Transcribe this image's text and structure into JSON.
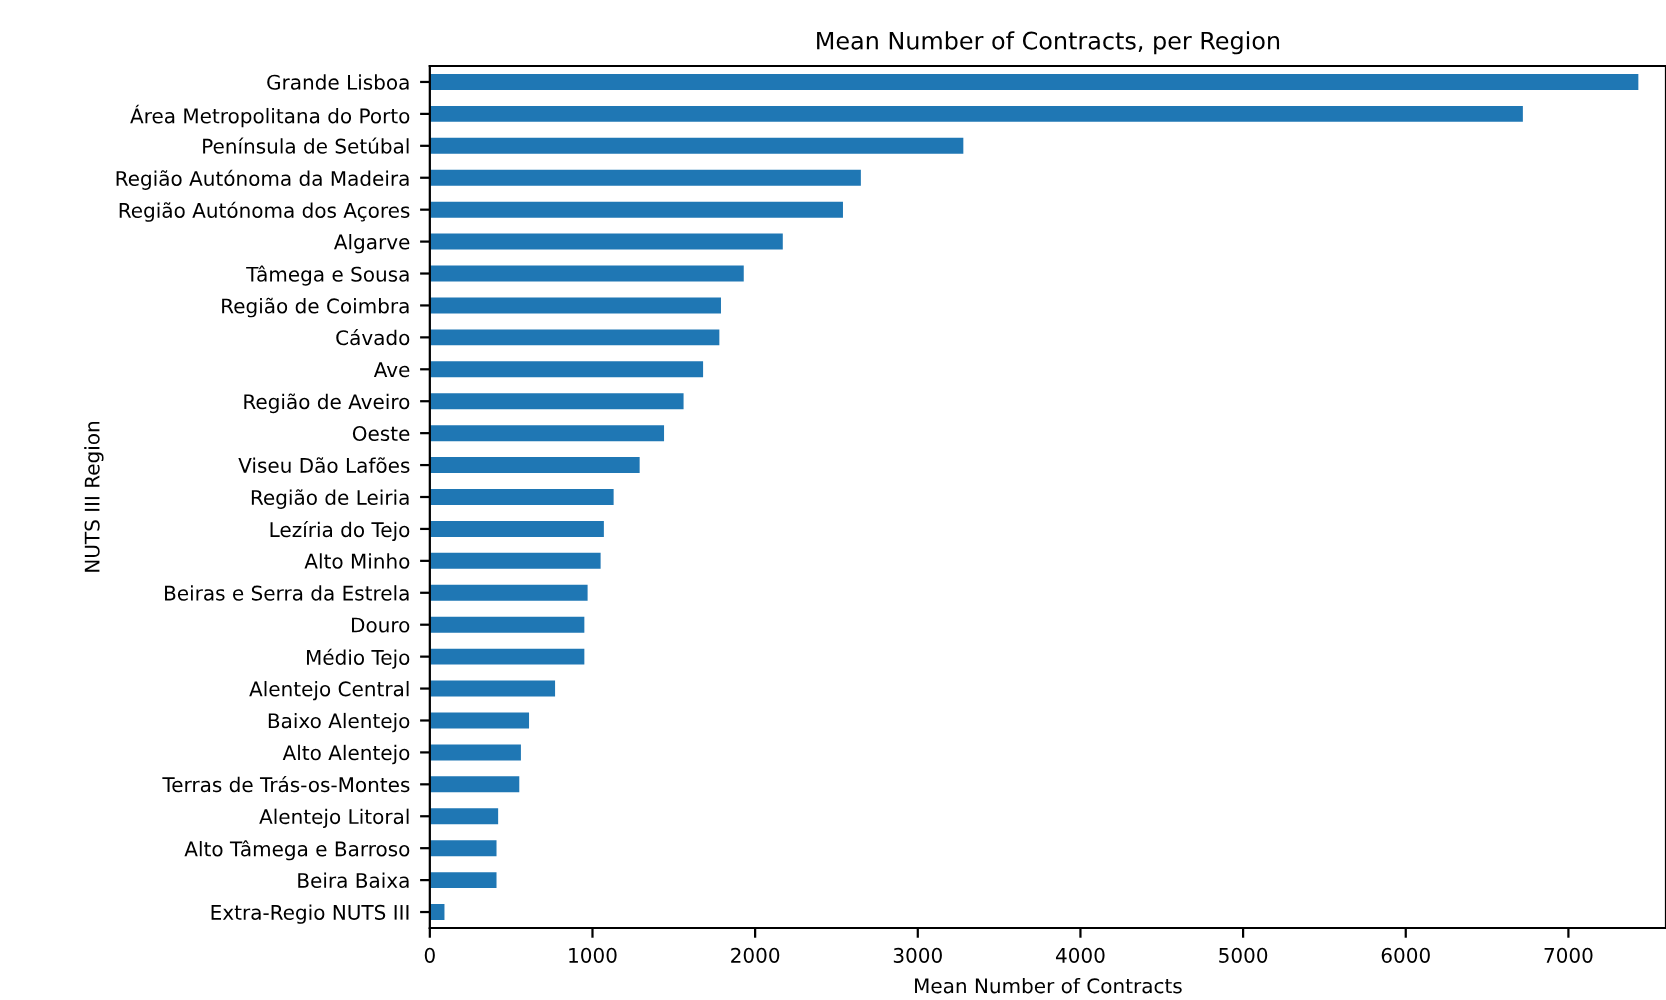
{
  "chart_data": {
    "type": "bar",
    "orientation": "horizontal",
    "title": "Mean Number of Contracts, per Region",
    "xlabel": "Mean Number of Contracts",
    "ylabel": "NUTS III Region",
    "categories": [
      "Grande Lisboa",
      "Área Metropolitana do Porto",
      "Península de Setúbal",
      "Região Autónoma da Madeira",
      "Região Autónoma dos Açores",
      "Algarve",
      "Tâmega e Sousa",
      "Região de Coimbra",
      "Cávado",
      "Ave",
      "Região de Aveiro",
      "Oeste",
      "Viseu Dão Lafões",
      "Região de Leiria",
      "Lezíria do Tejo",
      "Alto Minho",
      "Beiras e Serra da Estrela",
      "Douro",
      "Médio Tejo",
      "Alentejo Central",
      "Baixo Alentejo",
      "Alto Alentejo",
      "Terras de Trás-os-Montes",
      "Alentejo Litoral",
      "Alto Tâmega e Barroso",
      "Beira Baixa",
      "Extra-Regio NUTS III"
    ],
    "values": [
      7430,
      6720,
      3280,
      2650,
      2540,
      2170,
      1930,
      1790,
      1780,
      1680,
      1560,
      1440,
      1290,
      1130,
      1070,
      1050,
      970,
      950,
      950,
      770,
      610,
      560,
      550,
      420,
      410,
      410,
      90
    ],
    "color": "#1f77b4",
    "xlim": [
      0,
      7600
    ],
    "xticks": [
      0,
      1000,
      2000,
      3000,
      4000,
      5000,
      6000,
      7000
    ],
    "grid": false,
    "legend": false
  }
}
